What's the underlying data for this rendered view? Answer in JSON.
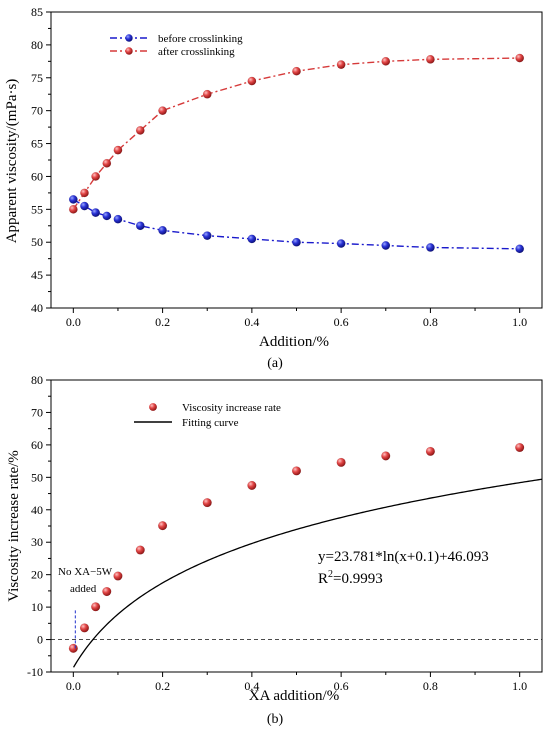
{
  "chart_data": [
    {
      "panel_label": "(a)",
      "type": "line",
      "xlabel": "Addition/%",
      "ylabel": "Apparent viscosity/(mPa·s)",
      "xlim": [
        -0.05,
        1.05
      ],
      "ylim": [
        40,
        85
      ],
      "xticks": [
        "0.0",
        "0.2",
        "0.4",
        "0.6",
        "0.8",
        "1.0"
      ],
      "yticks": [
        "40",
        "45",
        "50",
        "55",
        "60",
        "65",
        "70",
        "75",
        "80",
        "85"
      ],
      "legend_position": "top-left",
      "series": [
        {
          "name": "before crosslinking",
          "color": "#1a1acc",
          "line_style": "dash-dot",
          "marker": "sphere",
          "x": [
            0,
            0.025,
            0.05,
            0.075,
            0.1,
            0.15,
            0.2,
            0.3,
            0.4,
            0.5,
            0.6,
            0.7,
            0.8,
            1.0
          ],
          "values": [
            56.5,
            55.5,
            54.5,
            54.0,
            53.5,
            52.5,
            51.8,
            51.0,
            50.5,
            50.0,
            49.8,
            49.5,
            49.2,
            49.0
          ]
        },
        {
          "name": "after crosslinking",
          "color": "#d63a3a",
          "line_style": "dash-dot",
          "marker": "sphere",
          "x": [
            0,
            0.025,
            0.05,
            0.075,
            0.1,
            0.15,
            0.2,
            0.3,
            0.4,
            0.5,
            0.6,
            0.7,
            0.8,
            1.0
          ],
          "values": [
            55.0,
            57.5,
            60.0,
            62.0,
            64.0,
            67.0,
            70.0,
            72.5,
            74.5,
            76.0,
            77.0,
            77.5,
            77.8,
            78.0
          ]
        }
      ]
    },
    {
      "panel_label": "(b)",
      "type": "scatter",
      "xlabel": "XA addition/%",
      "ylabel": "Viscosity increase rate/%",
      "xlim": [
        -0.05,
        1.05
      ],
      "ylim": [
        -10,
        80
      ],
      "xticks": [
        "0.0",
        "0.2",
        "0.4",
        "0.6",
        "0.8",
        "1.0"
      ],
      "yticks": [
        "-10",
        "0",
        "10",
        "20",
        "30",
        "40",
        "50",
        "60",
        "70",
        "80"
      ],
      "legend_position": "top-left",
      "series": [
        {
          "name": "Viscosity increase rate",
          "color": "#d63a3a",
          "marker": "sphere",
          "x": [
            0,
            0.025,
            0.05,
            0.075,
            0.1,
            0.15,
            0.2,
            0.3,
            0.4,
            0.5,
            0.6,
            0.7,
            0.8,
            1.0
          ],
          "values": [
            -2.7,
            3.6,
            10.1,
            14.8,
            19.6,
            27.6,
            35.1,
            42.2,
            47.5,
            52.0,
            54.6,
            56.6,
            58.0,
            59.2
          ]
        },
        {
          "name": "Fitting curve",
          "color": "#000000",
          "line_style": "solid",
          "equation": {
            "a": 23.781,
            "b": 0.1,
            "c": 46.093
          }
        }
      ],
      "reference_line": {
        "y": 0,
        "style": "dashed"
      },
      "annotations": {
        "equation_text": "y=23.781*ln(x+0.1)+46.093",
        "r2_prefix": "R",
        "r2_sup": "2",
        "r2_suffix": "=0.9993",
        "callout_line1": "No XA−5W",
        "callout_line2": "added",
        "callout_color": "#2233cc"
      }
    }
  ]
}
